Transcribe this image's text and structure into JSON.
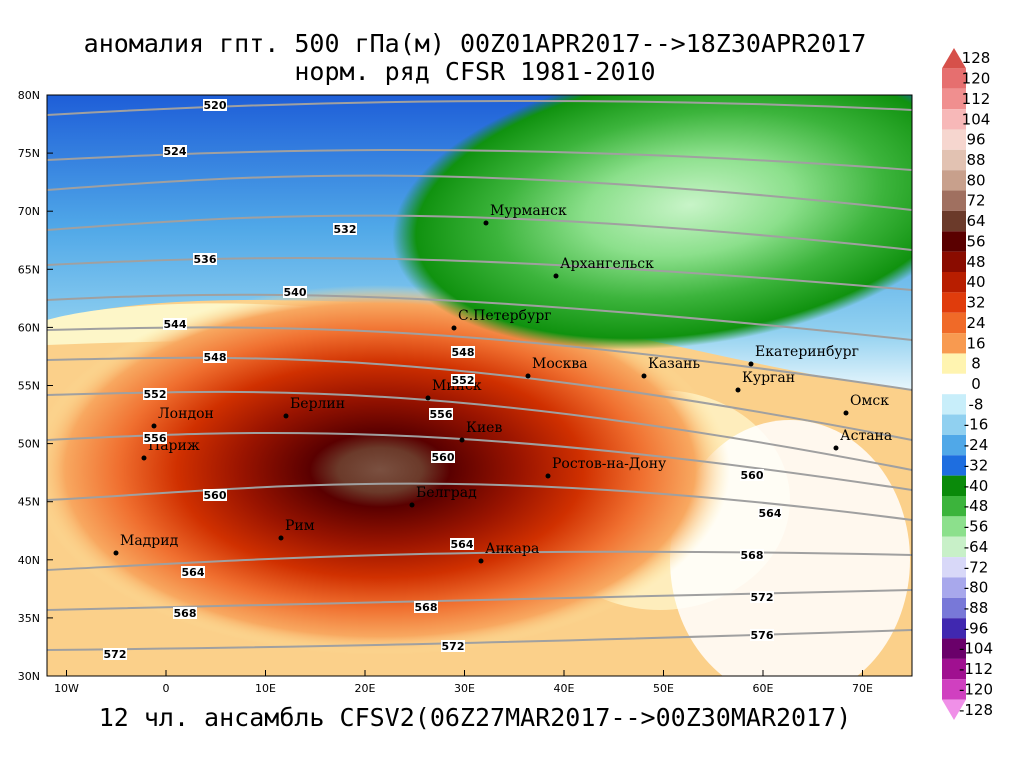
{
  "title": "аномалия гпт. 500 гПа(м) 00Z01APR2017-->18Z30APR2017",
  "subtitle": "норм. ряд CFSR 1981-2010",
  "caption": "12 чл. ансамбль CFSV2(06Z27MAR2017-->00Z30MAR2017)",
  "lat_ticks": [
    {
      "value": 80,
      "label": "80N"
    },
    {
      "value": 75,
      "label": "75N"
    },
    {
      "value": 70,
      "label": "70N"
    },
    {
      "value": 65,
      "label": "65N"
    },
    {
      "value": 60,
      "label": "60N"
    },
    {
      "value": 55,
      "label": "55N"
    },
    {
      "value": 50,
      "label": "50N"
    },
    {
      "value": 45,
      "label": "45N"
    },
    {
      "value": 40,
      "label": "40N"
    },
    {
      "value": 35,
      "label": "35N"
    },
    {
      "value": 30,
      "label": "30N"
    }
  ],
  "lon_ticks": [
    {
      "value": -10,
      "label": "10W"
    },
    {
      "value": 0,
      "label": "0"
    },
    {
      "value": 10,
      "label": "10E"
    },
    {
      "value": 20,
      "label": "20E"
    },
    {
      "value": 30,
      "label": "30E"
    },
    {
      "value": 40,
      "label": "40E"
    },
    {
      "value": 50,
      "label": "50E"
    },
    {
      "value": 60,
      "label": "60E"
    },
    {
      "value": 70,
      "label": "70E"
    }
  ],
  "colorbar": [
    {
      "value": 128,
      "color": "#d6504a"
    },
    {
      "value": 120,
      "color": "#e66f6f"
    },
    {
      "value": 112,
      "color": "#f08f8f"
    },
    {
      "value": 104,
      "color": "#f7b8b8"
    },
    {
      "value": 96,
      "color": "#f6d6cf"
    },
    {
      "value": 88,
      "color": "#e2c2b2"
    },
    {
      "value": 80,
      "color": "#c8a08c"
    },
    {
      "value": 72,
      "color": "#a07060"
    },
    {
      "value": 64,
      "color": "#6b3a2a"
    },
    {
      "value": 56,
      "color": "#5a0000"
    },
    {
      "value": 48,
      "color": "#8a0c00"
    },
    {
      "value": 40,
      "color": "#b81e00"
    },
    {
      "value": 32,
      "color": "#e03c0c"
    },
    {
      "value": 24,
      "color": "#f06a28"
    },
    {
      "value": 16,
      "color": "#f89a50"
    },
    {
      "value": 8,
      "color": "#fff4b0"
    },
    {
      "value": 0,
      "color": "#ffffff"
    },
    {
      "value": -8,
      "color": "#c8eefa"
    },
    {
      "value": -16,
      "color": "#90d0f0"
    },
    {
      "value": -24,
      "color": "#50a8e8"
    },
    {
      "value": -32,
      "color": "#1e6ee0"
    },
    {
      "value": -40,
      "color": "#0a8a0a"
    },
    {
      "value": -48,
      "color": "#3cb43c"
    },
    {
      "value": -56,
      "color": "#8ce08c"
    },
    {
      "value": -64,
      "color": "#c8f0c8"
    },
    {
      "value": -72,
      "color": "#d8d8f8"
    },
    {
      "value": -80,
      "color": "#a8a8ec"
    },
    {
      "value": -88,
      "color": "#7878d8"
    },
    {
      "value": -96,
      "color": "#4028b0"
    },
    {
      "value": -104,
      "color": "#6a006a"
    },
    {
      "value": -112,
      "color": "#a01090"
    },
    {
      "value": -120,
      "color": "#d040c0"
    },
    {
      "value": -128,
      "color": "#f090e8"
    }
  ],
  "cities": [
    "Мурманск",
    "Архангельск",
    "С.Петербург",
    "Москва",
    "Казань",
    "Екатеринбург",
    "Курган",
    "Омск",
    "Астана",
    "Минск",
    "Берлин",
    "Лондон",
    "Париж",
    "Киев",
    "Ростов-на-Дону",
    "Мадрид",
    "Рим",
    "Белград",
    "Анкара"
  ],
  "contour_labels": [
    520,
    524,
    532,
    536,
    540,
    544,
    548,
    548,
    552,
    552,
    556,
    556,
    560,
    560,
    560,
    564,
    564,
    564,
    568,
    568,
    568,
    572,
    572,
    572,
    576
  ]
}
